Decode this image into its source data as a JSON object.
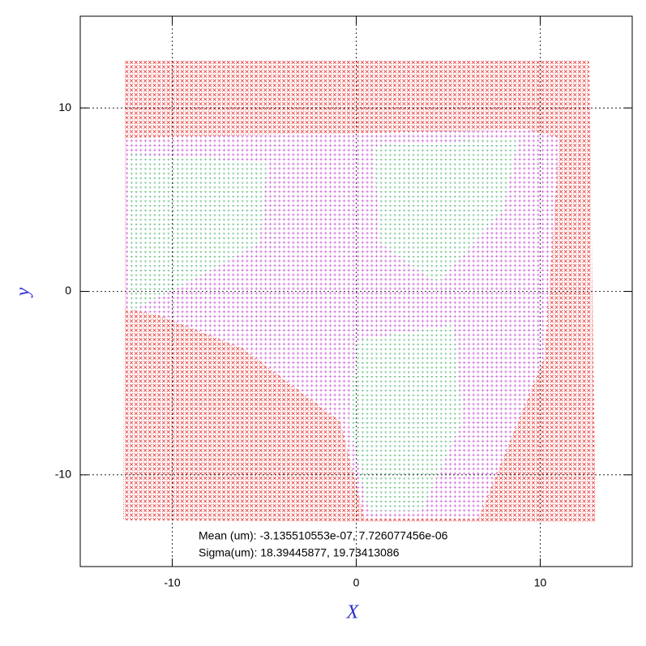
{
  "chart_data": {
    "type": "quiver",
    "xlabel": "X",
    "ylabel": "y",
    "xlim": [
      -15,
      15
    ],
    "ylim": [
      -15,
      15
    ],
    "xticks": [
      -10,
      0,
      10
    ],
    "yticks": [
      -10,
      0,
      10
    ],
    "grid": true,
    "annotations": [
      "Mean (um): -3.135510553e-07, 7.726077456e-06",
      "Sigma(um): 18.39445877, 19.73413086"
    ]
  }
}
